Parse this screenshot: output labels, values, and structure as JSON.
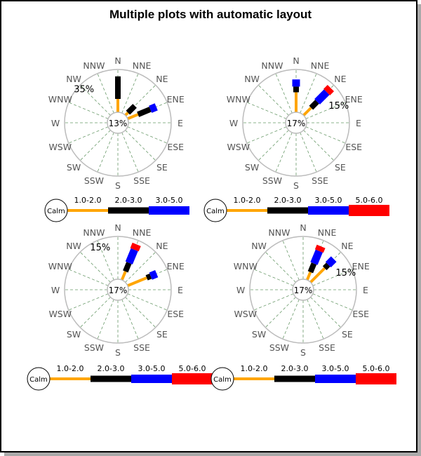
{
  "chart_data": {
    "type": "windrose",
    "title": "Multiple plots with automatic layout",
    "directions": [
      "N",
      "NNE",
      "NE",
      "ENE",
      "E",
      "ESE",
      "SE",
      "SSE",
      "S",
      "SSW",
      "SW",
      "WSW",
      "W",
      "WNW",
      "NW",
      "NNW"
    ],
    "ranges": [
      "1.0-2.0",
      "2.0-3.0",
      "3.0-5.0",
      "5.0-6.0"
    ],
    "range_colors": [
      "#FFA500",
      "#000000",
      "#0000FF",
      "#FF0000"
    ],
    "calm_label": "Calm",
    "plots": [
      {
        "calm": "13%",
        "scale_max": 40,
        "scale_label": "35%",
        "scale_label_value": 35,
        "scale_label_direction": "NW",
        "legend_ranges": 3,
        "data": [
          {
            "direction": "N",
            "values": [
              12.5,
              21
            ]
          },
          {
            "direction": "NE",
            "values": [
              3.5,
              9
            ]
          },
          {
            "direction": "ENE",
            "values": [
              10.5,
              12.5,
              6
            ]
          }
        ]
      },
      {
        "calm": "17%",
        "scale_max": 18,
        "scale_label": "15%",
        "scale_label_value": 15,
        "scale_label_direction": "ENE",
        "legend_ranges": 4,
        "data": [
          {
            "direction": "N",
            "values": [
              8.4,
              2.4,
              3
            ]
          },
          {
            "direction": "NE",
            "values": [
              4.5,
              3.6,
              5.7,
              2.4
            ]
          }
        ]
      },
      {
        "calm": "17%",
        "scale_max": 18,
        "scale_label": "15%",
        "scale_label_value": 15,
        "scale_label_direction": "NNW",
        "legend_ranges": 4,
        "data": [
          {
            "direction": "NNE",
            "values": [
              3.9,
              3.9,
              6,
              2.4
            ]
          },
          {
            "direction": "ENE",
            "values": [
              8.7,
              1.8,
              2.7
            ]
          }
        ]
      },
      {
        "calm": "17%",
        "scale_max": 18,
        "scale_label": "15%",
        "scale_label_value": 15,
        "scale_label_direction": "ENE",
        "legend_ranges": 4,
        "data": [
          {
            "direction": "NNE",
            "values": [
              3.6,
              3.9,
              5.7,
              2.1
            ]
          },
          {
            "direction": "NE",
            "values": [
              8.4,
              2.1,
              3.3
            ]
          }
        ]
      }
    ]
  }
}
